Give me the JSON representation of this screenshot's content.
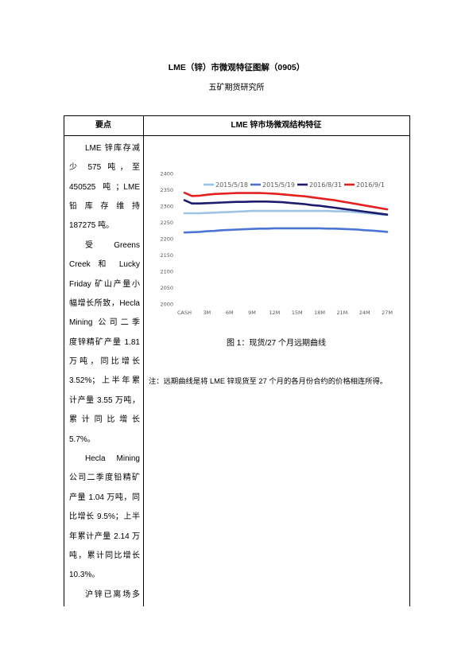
{
  "document": {
    "title": "LME（锌）市微观特征图解（0905）",
    "subtitle": "五矿期货研究所"
  },
  "table": {
    "headers": [
      "要点",
      "LME 锌市场微观结构特征"
    ],
    "key_points": {
      "paragraphs": [
        [
          "LME 锌库存减",
          "少 575 吨，至",
          "450525 吨；LME",
          "铅库存维持",
          "187275 吨。"
        ],
        [
          "受 Greens",
          "Creek 和 Lucky",
          "Friday 矿山产量小",
          "幅增长所致，Hecla",
          "Mining 公司二季",
          "度锌精矿产量 1.81",
          "万吨，同比增长",
          "3.52%；上半年累",
          "计产量 3.55 万吨，",
          "累计同比增长",
          "5.7%。"
        ],
        [
          "Hecla Mining",
          "公司二季度铅精矿",
          "产量 1.04 万吨，同",
          "比增长 9.5%；上半",
          "年累计产量 2.14 万",
          "吨，累计同比增长",
          "10.3%。"
        ],
        [
          "沪锌已离场多"
        ]
      ]
    },
    "figure": {
      "caption": "图 1：现货/27 个月远期曲线",
      "note": "注：远期曲线是将 LME 锌现货至 27 个月的各月份合约的价格相连所得。"
    }
  },
  "chart_data": {
    "type": "line",
    "title": "",
    "xlabel": "",
    "ylabel": "",
    "x": [
      0,
      1,
      2,
      3,
      4,
      5,
      6,
      7,
      8,
      9,
      10,
      11,
      12,
      13,
      14,
      15,
      16,
      17,
      18,
      19,
      20,
      21,
      22,
      23,
      24,
      25,
      26,
      27
    ],
    "xlim": [
      0,
      27
    ],
    "x_ticks": [
      {
        "x": 0,
        "label": "CASH"
      },
      {
        "x": 3,
        "label": "3M"
      },
      {
        "x": 6,
        "label": "6M"
      },
      {
        "x": 9,
        "label": "9M"
      },
      {
        "x": 12,
        "label": "12M"
      },
      {
        "x": 15,
        "label": "15M"
      },
      {
        "x": 18,
        "label": "18M"
      },
      {
        "x": 21,
        "label": "21M"
      },
      {
        "x": 24,
        "label": "24M"
      },
      {
        "x": 27,
        "label": "27M"
      }
    ],
    "ylim": [
      2000,
      2400
    ],
    "y_ticks": [
      2400,
      2350,
      2300,
      2250,
      2200,
      2150,
      2100,
      2050,
      2000
    ],
    "grid": false,
    "legend": "top",
    "series": [
      {
        "name": "2015/5/18",
        "color": "#9dc3e6",
        "values": [
          2278,
          2278,
          2278,
          2279,
          2280,
          2281,
          2282,
          2283,
          2284,
          2285,
          2285,
          2285,
          2285,
          2285,
          2285,
          2285,
          2285,
          2285,
          2285,
          2285,
          2284,
          2284,
          2283,
          2281,
          2279,
          2277,
          2275,
          2273
        ]
      },
      {
        "name": "2015/5/19",
        "color": "#4a74d6",
        "values": [
          2219,
          2220,
          2221,
          2223,
          2224,
          2226,
          2227,
          2228,
          2229,
          2230,
          2231,
          2231,
          2232,
          2232,
          2232,
          2232,
          2232,
          2232,
          2232,
          2231,
          2231,
          2230,
          2229,
          2228,
          2226,
          2225,
          2223,
          2221
        ]
      },
      {
        "name": "2016/8/31",
        "color": "#1c1c6e",
        "values": [
          2318,
          2308,
          2308,
          2309,
          2310,
          2311,
          2312,
          2313,
          2313,
          2314,
          2314,
          2314,
          2313,
          2312,
          2310,
          2308,
          2306,
          2303,
          2301,
          2298,
          2295,
          2292,
          2289,
          2286,
          2283,
          2280,
          2277,
          2274
        ]
      },
      {
        "name": "2016/9/1",
        "color": "#e5201e",
        "values": [
          2341,
          2331,
          2332,
          2335,
          2337,
          2338,
          2339,
          2340,
          2340,
          2340,
          2340,
          2339,
          2338,
          2336,
          2334,
          2332,
          2330,
          2327,
          2324,
          2321,
          2318,
          2314,
          2310,
          2306,
          2302,
          2298,
          2294,
          2290
        ]
      }
    ]
  }
}
